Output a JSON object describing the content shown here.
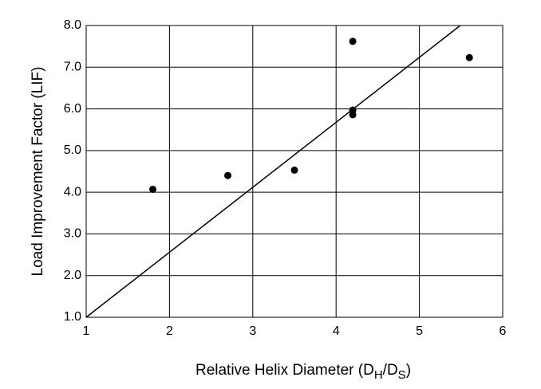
{
  "chart_data": {
    "type": "scatter",
    "xlabel": [
      "Relative Helix Diameter (D",
      "H",
      "/D",
      "S",
      ")"
    ],
    "ylabel": "Load Improvement Factor (LIF)",
    "x": [
      1.8,
      2.7,
      3.5,
      4.2,
      4.2,
      4.2,
      5.6
    ],
    "y": [
      4.07,
      4.4,
      4.53,
      7.62,
      5.97,
      5.86,
      7.23
    ],
    "color": "#000000",
    "trendline": {
      "x": [
        1,
        5.49
      ],
      "y": [
        1,
        8
      ]
    },
    "xlim": [
      1,
      6
    ],
    "xticks": [
      1,
      2,
      3,
      4,
      5,
      6
    ],
    "ylim": [
      1,
      8
    ],
    "yticks": [
      {
        "value": 1,
        "label": "1.0"
      },
      {
        "value": 2,
        "label": "2.0"
      },
      {
        "value": 3,
        "label": "3.0"
      },
      {
        "value": 4,
        "label": "4.0"
      },
      {
        "value": 5,
        "label": "5.0"
      },
      {
        "value": 6,
        "label": "6.0"
      },
      {
        "value": 7,
        "label": "7.0"
      },
      {
        "value": 8,
        "label": "8.0"
      }
    ],
    "grid": true
  }
}
